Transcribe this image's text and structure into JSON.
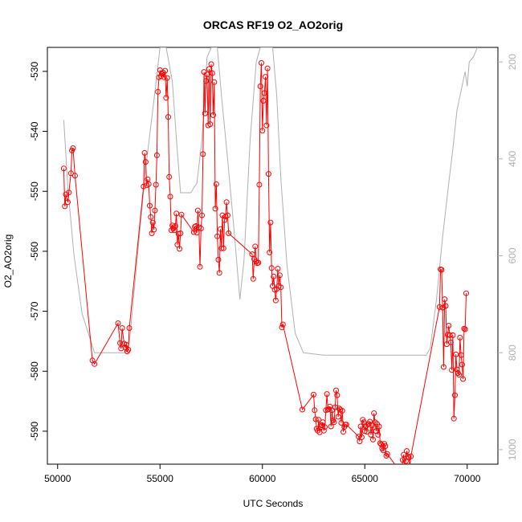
{
  "chart_data": {
    "type": "line",
    "title": "ORCAS RF19 O2_AO2orig",
    "xlabel": "UTC Seconds",
    "ylabel": "O2_AO2orig",
    "xlim": [
      49500,
      71500
    ],
    "ylim": [
      -595.5,
      -526
    ],
    "y2lim": [
      1030,
      170
    ],
    "x_ticks": [
      50000,
      55000,
      60000,
      65000,
      70000
    ],
    "y_ticks": [
      -590,
      -580,
      -570,
      -560,
      -550,
      -540,
      -530
    ],
    "y2_ticks": [
      200,
      400,
      600,
      800,
      1000
    ],
    "x_tick_labels": [
      "50000",
      "55000",
      "60000",
      "65000",
      "70000"
    ],
    "y_tick_labels": [
      "-590",
      "-580",
      "-570",
      "-560",
      "-550",
      "-540",
      "-530"
    ],
    "y2_tick_labels": [
      "200",
      "400",
      "600",
      "800",
      "1000"
    ],
    "grid": false,
    "series": [
      {
        "color": "#ff0000",
        "style": "line+points",
        "axis": "left",
        "points": [
          [
            50300,
            -546.2
          ],
          [
            50350,
            -552.5
          ],
          [
            50400,
            -550.5
          ],
          [
            50500,
            -551.8
          ],
          [
            50550,
            -550.2
          ],
          [
            50650,
            -547.0
          ],
          [
            50700,
            -543.2
          ],
          [
            50750,
            -542.8
          ],
          [
            50850,
            -547.4
          ],
          [
            51700,
            -578.2
          ],
          [
            51800,
            -578.8
          ],
          [
            52950,
            -572.0
          ],
          [
            53050,
            -575.3
          ],
          [
            53100,
            -576.2
          ],
          [
            53150,
            -572.8
          ],
          [
            53250,
            -575.4
          ],
          [
            53300,
            -576.0
          ],
          [
            53350,
            -575.6
          ],
          [
            53400,
            -576.7
          ],
          [
            53450,
            -576.4
          ],
          [
            53500,
            -572.8
          ],
          [
            54200,
            -549.2
          ],
          [
            54250,
            -543.6
          ],
          [
            54300,
            -545.1
          ],
          [
            54350,
            -549.0
          ],
          [
            54400,
            -548.0
          ],
          [
            54450,
            -548.8
          ],
          [
            54500,
            -552.4
          ],
          [
            54550,
            -554.3
          ],
          [
            54600,
            -557.0
          ],
          [
            54650,
            -555.2
          ],
          [
            54700,
            -556.4
          ],
          [
            54750,
            -553.2
          ],
          [
            54800,
            -548.9
          ],
          [
            54850,
            -544.0
          ],
          [
            54900,
            -533.4
          ],
          [
            54950,
            -531.0
          ],
          [
            55000,
            -529.8
          ],
          [
            55050,
            -530.8
          ],
          [
            55100,
            -530.4
          ],
          [
            55150,
            -530.2
          ],
          [
            55200,
            -531.0
          ],
          [
            55250,
            -529.9
          ],
          [
            55300,
            -534.4
          ],
          [
            55350,
            -531.1
          ],
          [
            55400,
            -537.6
          ],
          [
            55450,
            -547.6
          ],
          [
            55500,
            -550.9
          ],
          [
            55550,
            -556.5
          ],
          [
            55600,
            -555.7
          ],
          [
            55650,
            -556.2
          ],
          [
            55700,
            -556.5
          ],
          [
            55750,
            -555.8
          ],
          [
            55800,
            -553.7
          ],
          [
            55850,
            -558.9
          ],
          [
            55900,
            -557.1
          ],
          [
            55950,
            -559.6
          ],
          [
            56000,
            -557.0
          ],
          [
            56050,
            -553.9
          ],
          [
            56650,
            -556.8
          ],
          [
            56700,
            -555.9
          ],
          [
            56750,
            -555.8
          ],
          [
            56800,
            -556.9
          ],
          [
            56850,
            -553.2
          ],
          [
            56900,
            -556.0
          ],
          [
            56950,
            -562.6
          ],
          [
            57000,
            -556.2
          ],
          [
            57050,
            -554.0
          ],
          [
            57100,
            -543.8
          ],
          [
            57150,
            -530.1
          ],
          [
            57200,
            -537.0
          ],
          [
            57250,
            -531.6
          ],
          [
            57300,
            -530.5
          ],
          [
            57350,
            -539.0
          ],
          [
            57400,
            -529.6
          ],
          [
            57450,
            -538.8
          ],
          [
            57500,
            -528.8
          ],
          [
            57550,
            -530.3
          ],
          [
            57600,
            -537.3
          ],
          [
            57650,
            -531.8
          ],
          [
            57700,
            -552.9
          ],
          [
            57750,
            -548.8
          ],
          [
            57800,
            -557.5
          ],
          [
            57850,
            -561.4
          ],
          [
            57900,
            -563.6
          ],
          [
            57950,
            -556.3
          ],
          [
            58000,
            -559.5
          ],
          [
            58050,
            -554.0
          ],
          [
            58100,
            -559.5
          ],
          [
            58150,
            -554.8
          ],
          [
            58200,
            -554.2
          ],
          [
            58250,
            -551.8
          ],
          [
            58300,
            -554.0
          ],
          [
            58350,
            -557.0
          ],
          [
            59500,
            -560.5
          ],
          [
            59550,
            -564.6
          ],
          [
            59600,
            -561.3
          ],
          [
            59650,
            -559.2
          ],
          [
            59700,
            -561.7
          ],
          [
            59750,
            -562.0
          ],
          [
            59800,
            -561.9
          ],
          [
            59850,
            -548.9
          ],
          [
            59900,
            -532.5
          ],
          [
            59950,
            -528.6
          ],
          [
            60000,
            -539.9
          ],
          [
            60050,
            -534.9
          ],
          [
            60100,
            -533.6
          ],
          [
            60150,
            -530.9
          ],
          [
            60200,
            -539.0
          ],
          [
            60250,
            -529.5
          ],
          [
            60300,
            -547.1
          ],
          [
            60350,
            -560.2
          ],
          [
            60400,
            -555.2
          ],
          [
            60450,
            -562.8
          ],
          [
            60500,
            -565.8
          ],
          [
            60550,
            -564.2
          ],
          [
            60600,
            -566.4
          ],
          [
            60650,
            -568.2
          ],
          [
            60700,
            -566.3
          ],
          [
            60750,
            -562.9
          ],
          [
            60800,
            -565.8
          ],
          [
            60850,
            -564.0
          ],
          [
            60900,
            -566.0
          ],
          [
            60950,
            -572.7
          ],
          [
            61000,
            -572.2
          ],
          [
            61950,
            -586.4
          ],
          [
            62500,
            -583.9
          ],
          [
            62550,
            -586.5
          ],
          [
            62600,
            -588.0
          ],
          [
            62650,
            -589.6
          ],
          [
            62700,
            -589.9
          ],
          [
            62750,
            -588.1
          ],
          [
            62800,
            -590.2
          ],
          [
            62850,
            -589.3
          ],
          [
            62900,
            -589.0
          ],
          [
            62950,
            -588.5
          ],
          [
            63000,
            -589.9
          ],
          [
            63050,
            -589.3
          ],
          [
            63100,
            -586.5
          ],
          [
            63150,
            -583.8
          ],
          [
            63200,
            -586.4
          ],
          [
            63250,
            -586.3
          ],
          [
            63300,
            -585.9
          ],
          [
            63350,
            -589.2
          ],
          [
            63400,
            -586.5
          ],
          [
            63450,
            -588.2
          ],
          [
            63500,
            -588.5
          ],
          [
            63550,
            -586.0
          ],
          [
            63600,
            -583.2
          ],
          [
            63650,
            -584.0
          ],
          [
            63700,
            -587.6
          ],
          [
            63750,
            -586.2
          ],
          [
            63800,
            -586.4
          ],
          [
            63850,
            -588.6
          ],
          [
            63900,
            -586.6
          ],
          [
            63950,
            -590.1
          ],
          [
            64000,
            -589.3
          ],
          [
            64050,
            -588.9
          ],
          [
            64100,
            -588.9
          ],
          [
            64700,
            -590.9
          ],
          [
            64750,
            -591.7
          ],
          [
            64800,
            -589.2
          ],
          [
            64850,
            -591.0
          ],
          [
            64900,
            -588.1
          ],
          [
            64950,
            -588.5
          ],
          [
            65000,
            -590.0
          ],
          [
            65050,
            -589.2
          ],
          [
            65100,
            -590.1
          ],
          [
            65150,
            -588.8
          ],
          [
            65200,
            -588.8
          ],
          [
            65250,
            -588.4
          ],
          [
            65300,
            -590.6
          ],
          [
            65350,
            -589.0
          ],
          [
            65400,
            -591.4
          ],
          [
            65450,
            -587.0
          ],
          [
            65500,
            -588.5
          ],
          [
            65550,
            -590.0
          ],
          [
            65600,
            -588.8
          ],
          [
            65650,
            -590.6
          ],
          [
            65700,
            -589.2
          ],
          [
            65750,
            -592.0
          ],
          [
            65800,
            -592.2
          ],
          [
            65850,
            -592.9
          ],
          [
            65900,
            -593.2
          ],
          [
            65950,
            -592.1
          ],
          [
            66000,
            -592.5
          ],
          [
            66050,
            -594.1
          ],
          [
            66100,
            -593.8
          ],
          [
            66800,
            -597.1
          ],
          [
            66850,
            -594.8
          ],
          [
            66900,
            -593.9
          ],
          [
            66950,
            -596.0
          ],
          [
            67000,
            -595.0
          ],
          [
            67050,
            -593.3
          ],
          [
            67100,
            -594.2
          ],
          [
            67150,
            -594.4
          ],
          [
            67200,
            -596.0
          ],
          [
            67250,
            -594.2
          ],
          [
            68650,
            -569.3
          ],
          [
            68700,
            -563.0
          ],
          [
            68750,
            -563.1
          ],
          [
            68800,
            -569.4
          ],
          [
            68850,
            -579.3
          ],
          [
            68900,
            -568.0
          ],
          [
            68950,
            -569.1
          ],
          [
            69000,
            -575.5
          ],
          [
            69050,
            -573.9
          ],
          [
            69100,
            -572.4
          ],
          [
            69150,
            -574.0
          ],
          [
            69200,
            -575.2
          ],
          [
            69250,
            -579.8
          ],
          [
            69300,
            -574.0
          ],
          [
            69350,
            -587.9
          ],
          [
            69400,
            -584.0
          ],
          [
            69450,
            -577.2
          ],
          [
            69500,
            -579.7
          ],
          [
            69550,
            -580.3
          ],
          [
            69600,
            -580.6
          ],
          [
            69650,
            -574.4
          ],
          [
            69700,
            -577.3
          ],
          [
            69750,
            -578.9
          ],
          [
            69800,
            -581.3
          ],
          [
            69850,
            -572.9
          ],
          [
            69900,
            -573.0
          ],
          [
            69950,
            -567.0
          ]
        ]
      },
      {
        "color": "#b0b0b0",
        "style": "line",
        "axis": "right",
        "points": [
          [
            50300,
            320
          ],
          [
            50500,
            460
          ],
          [
            50800,
            600
          ],
          [
            51200,
            720
          ],
          [
            51800,
            800
          ],
          [
            52300,
            800
          ],
          [
            52800,
            800
          ],
          [
            53300,
            800
          ],
          [
            53500,
            780
          ],
          [
            53900,
            600
          ],
          [
            54300,
            420
          ],
          [
            54700,
            280
          ],
          [
            55000,
            170
          ],
          [
            55300,
            170
          ],
          [
            55600,
            240
          ],
          [
            55800,
            360
          ],
          [
            56000,
            470
          ],
          [
            56200,
            470
          ],
          [
            56500,
            470
          ],
          [
            56800,
            450
          ],
          [
            57050,
            360
          ],
          [
            57300,
            190
          ],
          [
            57500,
            170
          ],
          [
            57800,
            170
          ],
          [
            58000,
            270
          ],
          [
            58300,
            400
          ],
          [
            58600,
            540
          ],
          [
            58900,
            690
          ],
          [
            59100,
            610
          ],
          [
            59400,
            360
          ],
          [
            59700,
            200
          ],
          [
            59900,
            170
          ],
          [
            60500,
            170
          ],
          [
            60700,
            270
          ],
          [
            60900,
            440
          ],
          [
            61200,
            620
          ],
          [
            61600,
            760
          ],
          [
            62000,
            800
          ],
          [
            63000,
            805
          ],
          [
            64000,
            805
          ],
          [
            65000,
            805
          ],
          [
            66000,
            805
          ],
          [
            67000,
            805
          ],
          [
            68000,
            805
          ],
          [
            68200,
            790
          ],
          [
            68500,
            690
          ],
          [
            68800,
            560
          ],
          [
            69100,
            450
          ],
          [
            69300,
            380
          ],
          [
            69500,
            300
          ],
          [
            69700,
            260
          ],
          [
            69900,
            220
          ],
          [
            70000,
            250
          ],
          [
            70100,
            200
          ],
          [
            70300,
            190
          ],
          [
            70500,
            170
          ]
        ]
      }
    ]
  }
}
